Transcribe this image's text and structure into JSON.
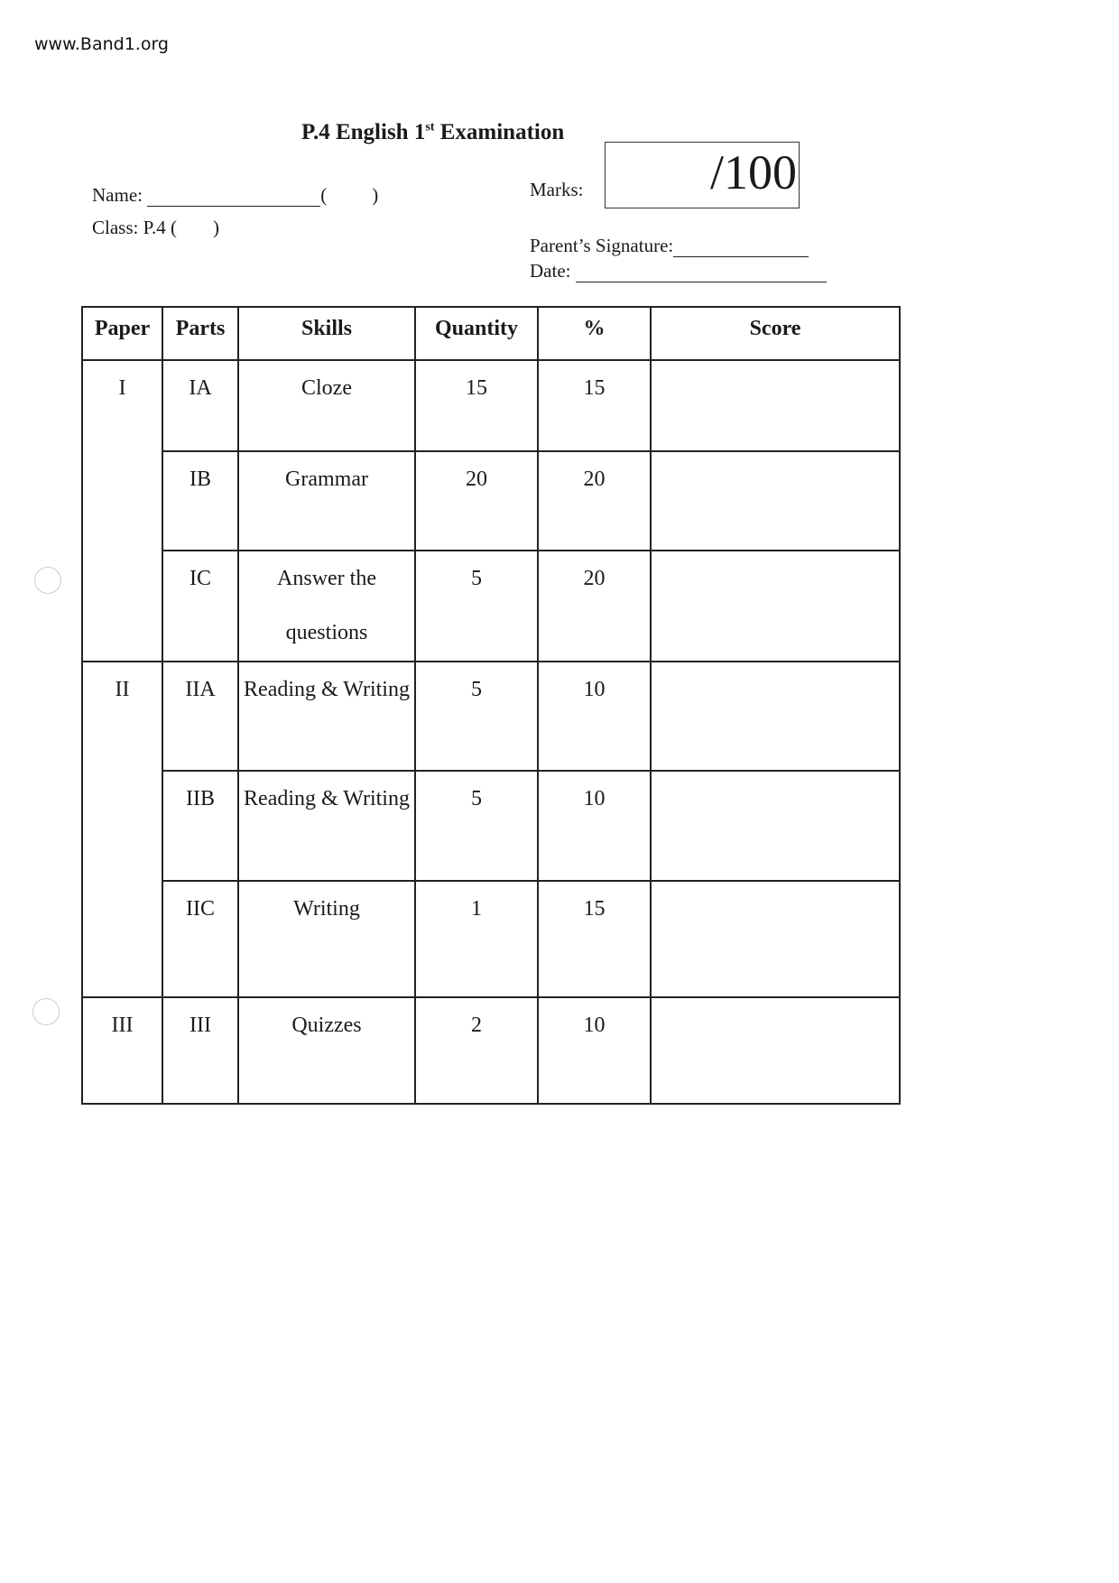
{
  "watermark": "www.Band1.org",
  "title": {
    "main": "P.4 English 1",
    "sup": "st",
    "rest": " Examination"
  },
  "fields": {
    "name": "Name:",
    "paren_open": "(",
    "paren_close": ")",
    "class": "Class: P.4 (",
    "class_close": ")",
    "marks": "Marks:",
    "marks_total": "/100",
    "signature": "Parent’s Signature:",
    "date": "Date:"
  },
  "table": {
    "headers": [
      "Paper",
      "Parts",
      "Skills",
      "Quantity",
      "%",
      "Score"
    ],
    "rows": [
      {
        "paper": "I",
        "part": "IA",
        "skill": "Cloze",
        "quantity": "15",
        "percent": "15",
        "score": ""
      },
      {
        "paper": "",
        "part": "IB",
        "skill": "Grammar",
        "quantity": "20",
        "percent": "20",
        "score": ""
      },
      {
        "paper": "",
        "part": "IC",
        "skill": "Answer the questions",
        "quantity": "5",
        "percent": "20",
        "score": ""
      },
      {
        "paper": "II",
        "part": "IIA",
        "skill": "Reading & Writing",
        "quantity": "5",
        "percent": "10",
        "score": ""
      },
      {
        "paper": "",
        "part": "IIB",
        "skill": "Reading & Writing",
        "quantity": "5",
        "percent": "10",
        "score": ""
      },
      {
        "paper": "",
        "part": "IIC",
        "skill": "Writing",
        "quantity": "1",
        "percent": "15",
        "score": ""
      },
      {
        "paper": "III",
        "part": "III",
        "skill": "Quizzes",
        "quantity": "2",
        "percent": "10",
        "score": ""
      }
    ]
  }
}
